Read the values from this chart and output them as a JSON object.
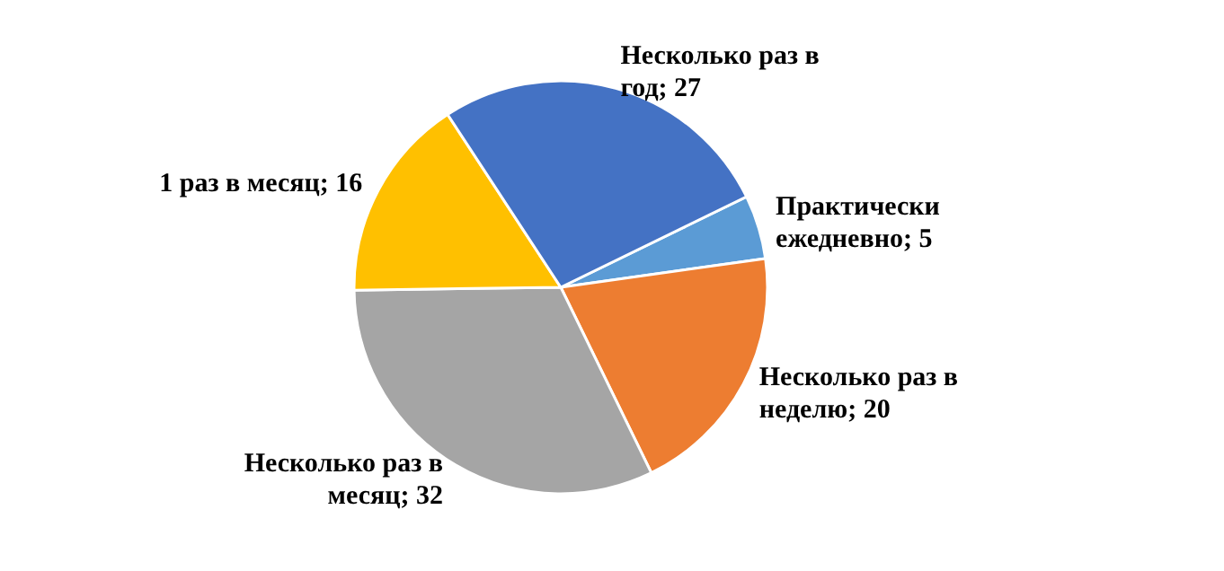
{
  "chart_data": {
    "type": "pie",
    "categories": [
      "Практически ежедневно",
      "Несколько раз в неделю",
      "Несколько раз в месяц",
      "1 раз в месяц",
      "Несколько раз в год"
    ],
    "values": [
      5,
      20,
      32,
      16,
      27
    ],
    "colors": [
      "#5b9bd5",
      "#ed7d31",
      "#a5a5a5",
      "#ffc000",
      "#4472c4"
    ],
    "value_labels": [
      "; 5",
      "; 20",
      "; 32",
      "; 16",
      "; 27"
    ],
    "legend": false
  }
}
